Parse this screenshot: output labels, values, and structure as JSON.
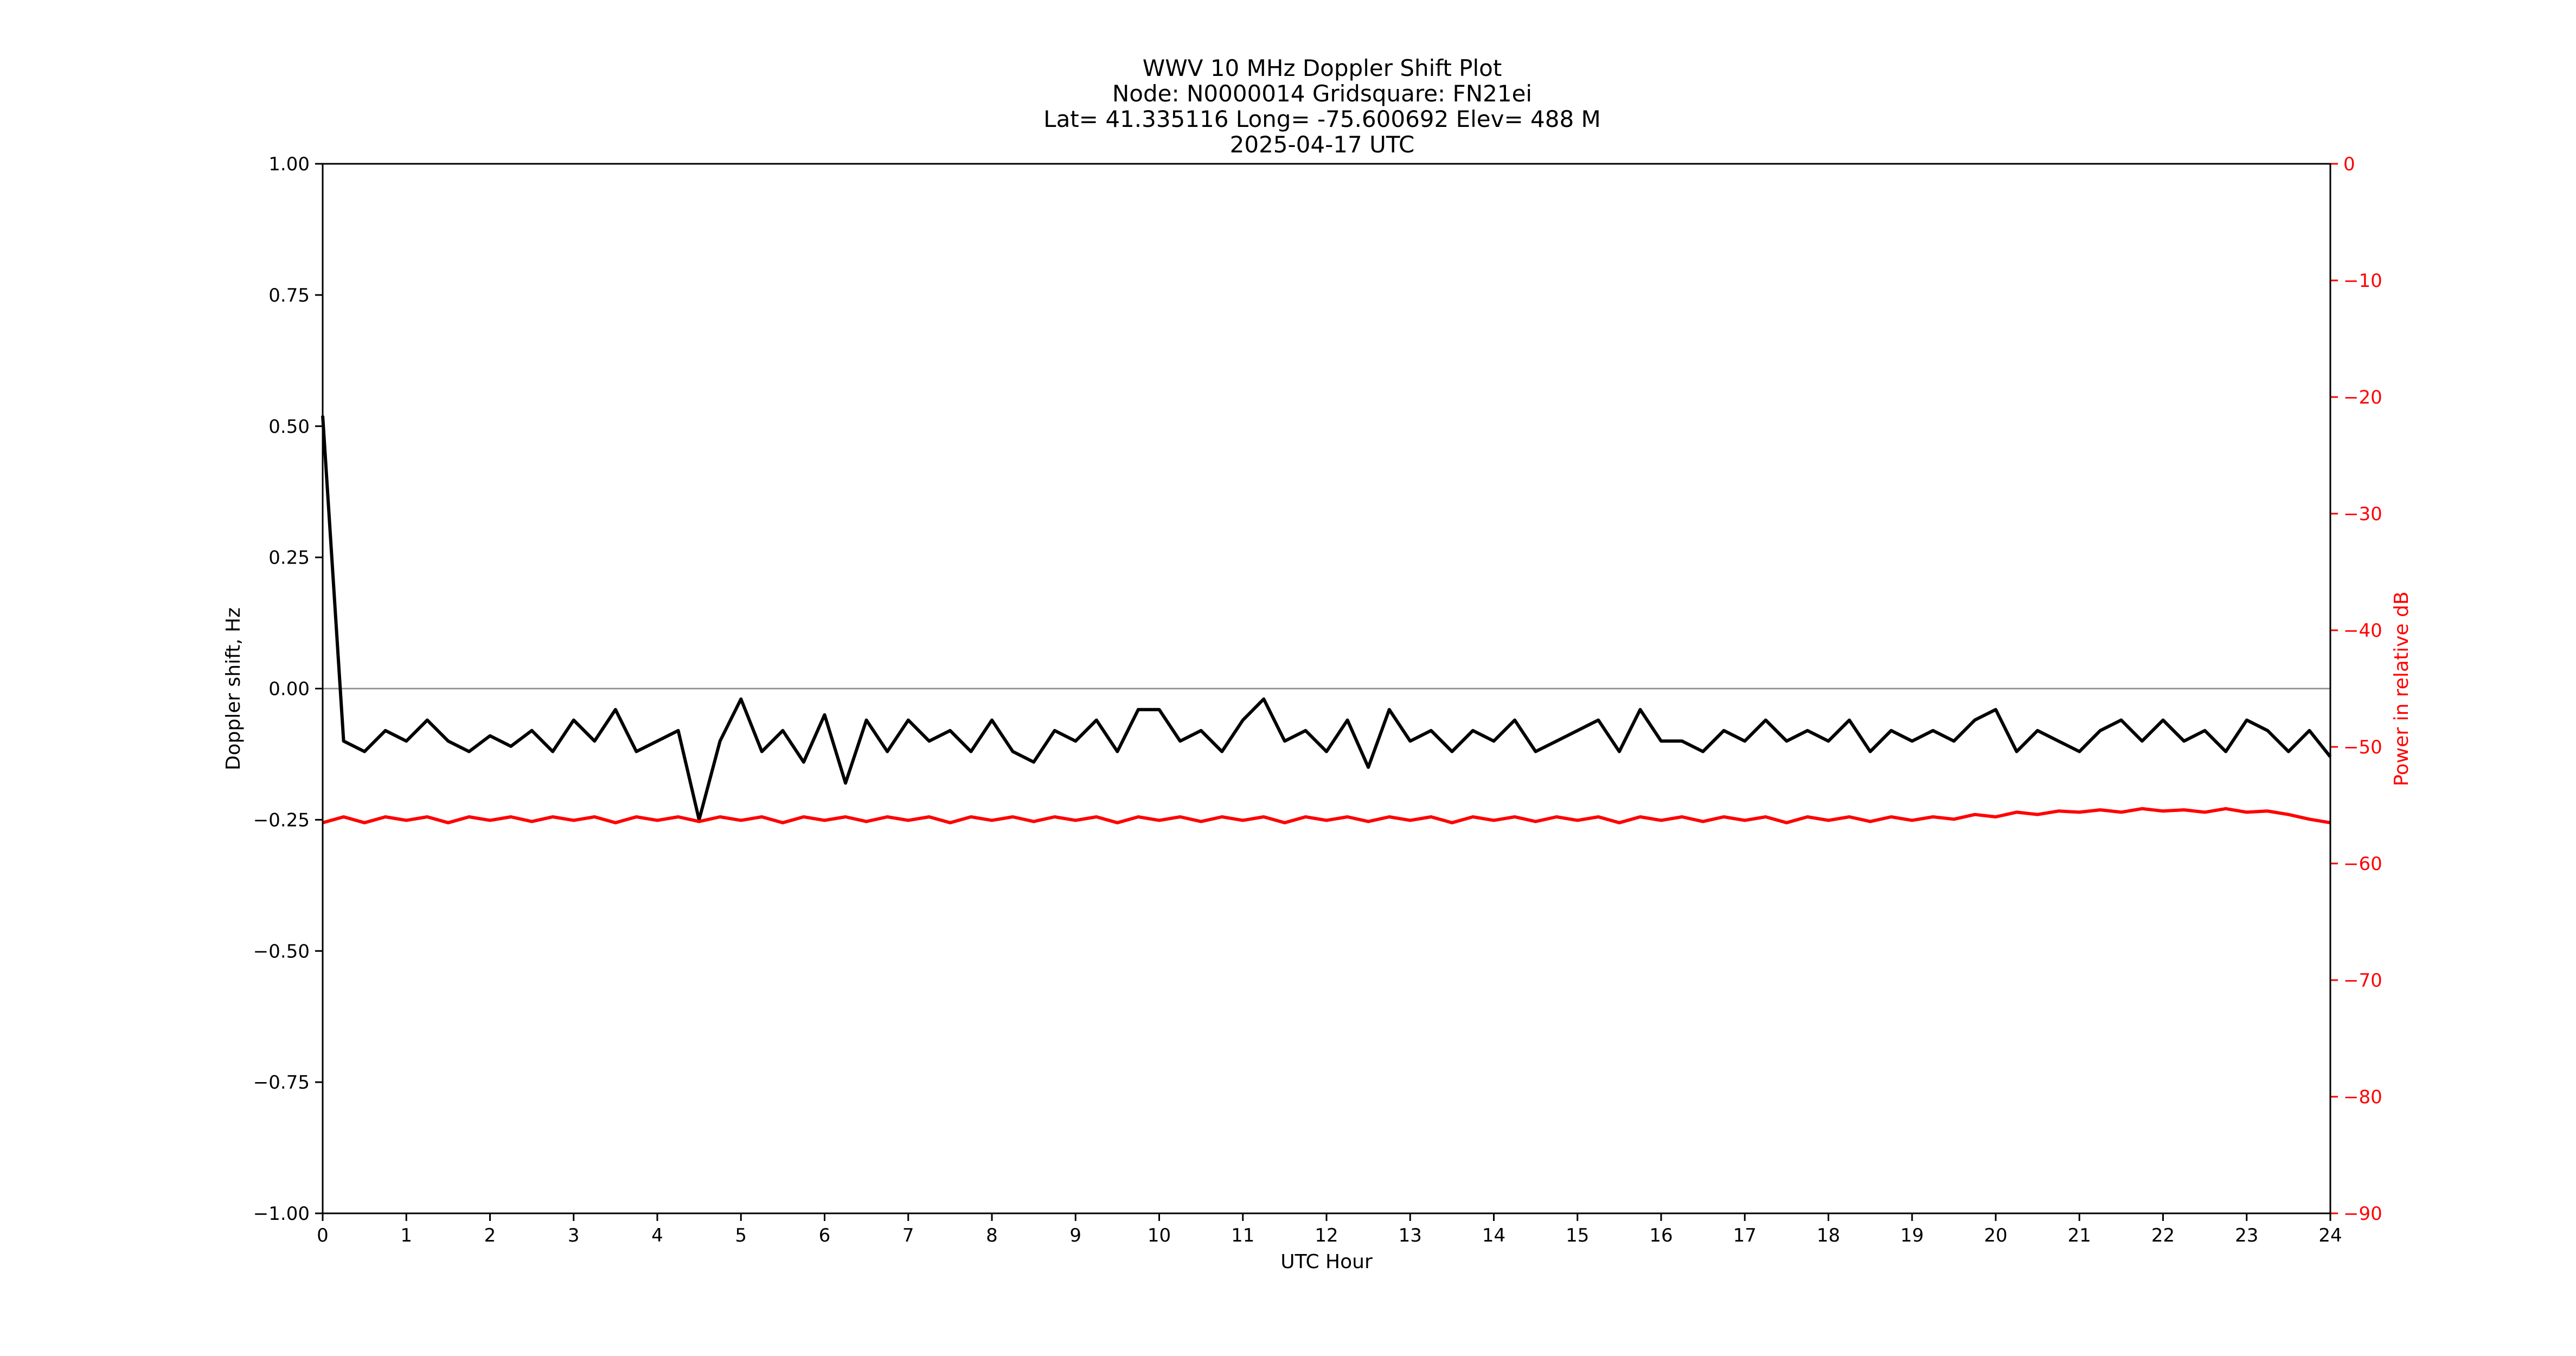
{
  "chart_data": {
    "type": "line",
    "title_lines": [
      "WWV 10 MHz Doppler Shift Plot",
      "Node:  N0000014     Gridsquare:  FN21ei",
      "Lat= 41.335116    Long= -75.600692    Elev= 488 M",
      "2025-04-17  UTC"
    ],
    "xlabel": "UTC Hour",
    "ylabel_left": "Doppler shift, Hz",
    "ylabel_right": "Power in relative dB",
    "xlim": [
      0,
      24
    ],
    "ylim_left": [
      -1.0,
      1.0
    ],
    "ylim_right": [
      -90,
      0
    ],
    "x_ticks": [
      0,
      1,
      2,
      3,
      4,
      5,
      6,
      7,
      8,
      9,
      10,
      11,
      12,
      13,
      14,
      15,
      16,
      17,
      18,
      19,
      20,
      21,
      22,
      23,
      24
    ],
    "x_tick_labels": [
      "0",
      "1",
      "2",
      "3",
      "4",
      "5",
      "6",
      "7",
      "8",
      "9",
      "10",
      "11",
      "12",
      "13",
      "14",
      "15",
      "16",
      "17",
      "18",
      "19",
      "20",
      "21",
      "22",
      "23",
      "24"
    ],
    "y_left_ticks": [
      -1.0,
      -0.75,
      -0.5,
      -0.25,
      0.0,
      0.25,
      0.5,
      0.75,
      1.0
    ],
    "y_left_tick_labels": [
      "−1.00",
      "−0.75",
      "−0.50",
      "−0.25",
      "0.00",
      "0.25",
      "0.50",
      "0.75",
      "1.00"
    ],
    "y_right_ticks": [
      0,
      -10,
      -20,
      -30,
      -40,
      -50,
      -60,
      -70,
      -80,
      -90
    ],
    "y_right_tick_labels": [
      "0",
      "−10",
      "−20",
      "−30",
      "−40",
      "−50",
      "−60",
      "−70",
      "−80",
      "−90"
    ],
    "reference_line_y": 0.0,
    "grid": false,
    "legend": "none",
    "colors": {
      "doppler": "#000000",
      "power": "#ff0000",
      "reference": "#999999",
      "right_axis": "#ff0000"
    },
    "series": [
      {
        "axis": "left",
        "x": [
          0,
          0.25,
          0.5,
          0.75,
          1,
          1.25,
          1.5,
          1.75,
          2,
          2.25,
          2.5,
          2.75,
          3,
          3.25,
          3.5,
          3.75,
          4,
          4.25,
          4.5,
          4.75,
          5,
          5.25,
          5.5,
          5.75,
          6,
          6.25,
          6.5,
          6.75,
          7,
          7.25,
          7.5,
          7.75,
          8,
          8.25,
          8.5,
          8.75,
          9,
          9.25,
          9.5,
          9.75,
          10,
          10.25,
          10.5,
          10.75,
          11,
          11.25,
          11.5,
          11.75,
          12,
          12.25,
          12.5,
          12.75,
          13,
          13.25,
          13.5,
          13.75,
          14,
          14.25,
          14.5,
          14.75,
          15,
          15.25,
          15.5,
          15.75,
          16,
          16.25,
          16.5,
          16.75,
          17,
          17.25,
          17.5,
          17.75,
          18,
          18.25,
          18.5,
          18.75,
          19,
          19.25,
          19.5,
          19.75,
          20,
          20.25,
          20.5,
          20.75,
          21,
          21.25,
          21.5,
          21.75,
          22,
          22.25,
          22.5,
          22.75,
          23,
          23.25,
          23.5,
          23.75,
          24
        ],
        "y": [
          0.52,
          -0.1,
          -0.12,
          -0.08,
          -0.1,
          -0.06,
          -0.1,
          -0.12,
          -0.09,
          -0.11,
          -0.08,
          -0.12,
          -0.06,
          -0.1,
          -0.04,
          -0.12,
          -0.1,
          -0.08,
          -0.25,
          -0.1,
          -0.02,
          -0.12,
          -0.08,
          -0.14,
          -0.05,
          -0.18,
          -0.06,
          -0.12,
          -0.06,
          -0.1,
          -0.08,
          -0.12,
          -0.06,
          -0.12,
          -0.14,
          -0.08,
          -0.1,
          -0.06,
          -0.12,
          -0.04,
          -0.04,
          -0.1,
          -0.08,
          -0.12,
          -0.06,
          -0.02,
          -0.1,
          -0.08,
          -0.12,
          -0.06,
          -0.15,
          -0.04,
          -0.1,
          -0.08,
          -0.12,
          -0.08,
          -0.1,
          -0.06,
          -0.12,
          -0.1,
          -0.08,
          -0.06,
          -0.12,
          -0.04,
          -0.1,
          -0.1,
          -0.12,
          -0.08,
          -0.1,
          -0.06,
          -0.1,
          -0.08,
          -0.1,
          -0.06,
          -0.12,
          -0.08,
          -0.1,
          -0.08,
          -0.1,
          -0.06,
          -0.04,
          -0.12,
          -0.08,
          -0.1,
          -0.12,
          -0.08,
          -0.06,
          -0.1,
          -0.06,
          -0.1,
          -0.08,
          -0.12,
          -0.06,
          -0.08,
          -0.12,
          -0.08,
          -0.13
        ]
      },
      {
        "axis": "right",
        "x": [
          0,
          0.25,
          0.5,
          0.75,
          1,
          1.25,
          1.5,
          1.75,
          2,
          2.25,
          2.5,
          2.75,
          3,
          3.25,
          3.5,
          3.75,
          4,
          4.25,
          4.5,
          4.75,
          5,
          5.25,
          5.5,
          5.75,
          6,
          6.25,
          6.5,
          6.75,
          7,
          7.25,
          7.5,
          7.75,
          8,
          8.25,
          8.5,
          8.75,
          9,
          9.25,
          9.5,
          9.75,
          10,
          10.25,
          10.5,
          10.75,
          11,
          11.25,
          11.5,
          11.75,
          12,
          12.25,
          12.5,
          12.75,
          13,
          13.25,
          13.5,
          13.75,
          14,
          14.25,
          14.5,
          14.75,
          15,
          15.25,
          15.5,
          15.75,
          16,
          16.25,
          16.5,
          16.75,
          17,
          17.25,
          17.5,
          17.75,
          18,
          18.25,
          18.5,
          18.75,
          19,
          19.25,
          19.5,
          19.75,
          20,
          20.25,
          20.5,
          20.75,
          21,
          21.25,
          21.5,
          21.75,
          22,
          22.25,
          22.5,
          22.75,
          23,
          23.25,
          23.5,
          23.75,
          24
        ],
        "y": [
          -56.5,
          -56.0,
          -56.5,
          -56.0,
          -56.3,
          -56.0,
          -56.5,
          -56.0,
          -56.3,
          -56.0,
          -56.4,
          -56.0,
          -56.3,
          -56.0,
          -56.5,
          -56.0,
          -56.3,
          -56.0,
          -56.4,
          -56.0,
          -56.3,
          -56.0,
          -56.5,
          -56.0,
          -56.3,
          -56.0,
          -56.4,
          -56.0,
          -56.3,
          -56.0,
          -56.5,
          -56.0,
          -56.3,
          -56.0,
          -56.4,
          -56.0,
          -56.3,
          -56.0,
          -56.5,
          -56.0,
          -56.3,
          -56.0,
          -56.4,
          -56.0,
          -56.3,
          -56.0,
          -56.5,
          -56.0,
          -56.3,
          -56.0,
          -56.4,
          -56.0,
          -56.3,
          -56.0,
          -56.5,
          -56.0,
          -56.3,
          -56.0,
          -56.4,
          -56.0,
          -56.3,
          -56.0,
          -56.5,
          -56.0,
          -56.3,
          -56.0,
          -56.4,
          -56.0,
          -56.3,
          -56.0,
          -56.5,
          -56.0,
          -56.3,
          -56.0,
          -56.4,
          -56.0,
          -56.3,
          -56.0,
          -56.2,
          -55.8,
          -56.0,
          -55.6,
          -55.8,
          -55.5,
          -55.6,
          -55.4,
          -55.6,
          -55.3,
          -55.5,
          -55.4,
          -55.6,
          -55.3,
          -55.6,
          -55.5,
          -55.8,
          -56.2,
          -56.5
        ]
      }
    ]
  }
}
